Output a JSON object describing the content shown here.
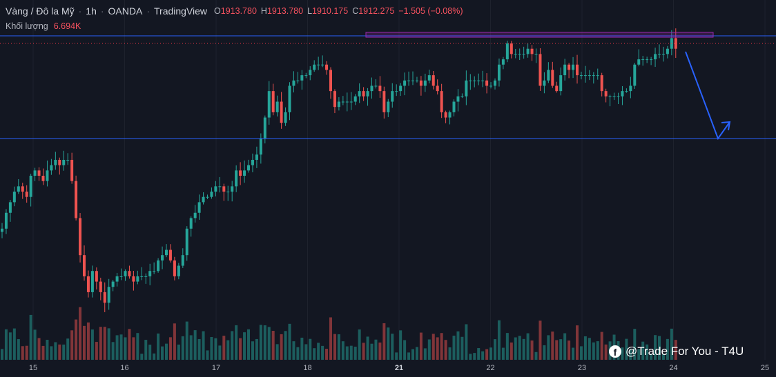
{
  "header": {
    "symbol": "Vàng / Đô la Mỹ",
    "interval": "1h",
    "broker": "OANDA",
    "platform": "TradingView",
    "o_label": "O",
    "o_value": "1913.780",
    "h_label": "H",
    "h_value": "1913.780",
    "l_label": "L",
    "l_value": "1910.175",
    "c_label": "C",
    "c_value": "1912.275",
    "change": "−1.505 (−0.08%)"
  },
  "volume": {
    "label": "Khối lượng",
    "value": "6.694K"
  },
  "watermark": {
    "text": "@Trade For You - T4U"
  },
  "colors": {
    "background": "#131722",
    "up": "#26a69a",
    "down": "#ef5350",
    "hline": "#2962ff",
    "zone": "#9c27b0",
    "arrow": "#2962ff",
    "price_line": "#f23645"
  },
  "chart_data": {
    "type": "candlestick",
    "symbol": "XAUUSD",
    "timeframe": "1h",
    "x_ticks": [
      {
        "label": "15",
        "bold": false
      },
      {
        "label": "16",
        "bold": false
      },
      {
        "label": "17",
        "bold": false
      },
      {
        "label": "18",
        "bold": false
      },
      {
        "label": "21",
        "bold": true
      },
      {
        "label": "22",
        "bold": false
      },
      {
        "label": "23",
        "bold": false
      },
      {
        "label": "24",
        "bold": false
      },
      {
        "label": "25",
        "bold": false
      }
    ],
    "resistance_level": 1914.0,
    "support_level": 1901.0,
    "last_close": 1912.275,
    "ylim": [
      1860,
      1916
    ],
    "closes": [
      1878,
      1881,
      1883,
      1885,
      1886,
      1885,
      1884,
      1888,
      1889,
      1888,
      1887,
      1889,
      1890,
      1891,
      1890,
      1891,
      1891,
      1887,
      1880,
      1873,
      1869,
      1866,
      1870,
      1868,
      1866,
      1864,
      1867,
      1868,
      1869,
      1869,
      1870,
      1869,
      1868,
      1869,
      1869,
      1869,
      1870,
      1870,
      1872,
      1873,
      1874,
      1872,
      1869,
      1871,
      1873,
      1878,
      1880,
      1881,
      1883,
      1884,
      1884,
      1885,
      1886,
      1886,
      1885,
      1885,
      1886,
      1889,
      1888,
      1889,
      1890,
      1891,
      1892,
      1895,
      1899,
      1904,
      1900,
      1902,
      1898,
      1900,
      1905,
      1906,
      1906,
      1907,
      1907,
      1908,
      1909,
      1909,
      1909,
      1908,
      1904,
      1901,
      1902,
      1902,
      1902,
      1902,
      1903,
      1904,
      1903,
      1904,
      1905,
      1905,
      1904,
      1900,
      1902,
      1904,
      1904,
      1905,
      1906,
      1906,
      1906,
      1906,
      1905,
      1906,
      1907,
      1905,
      1904,
      1900,
      1899,
      1900,
      1902,
      1903,
      1903,
      1906,
      1906,
      1906,
      1906,
      1906,
      1905,
      1905,
      1906,
      1909,
      1910,
      1913,
      1911,
      1911,
      1911,
      1911,
      1912,
      1911,
      1911,
      1905,
      1906,
      1908,
      1905,
      1904,
      1907,
      1909,
      1908,
      1909,
      1907,
      1907,
      1907,
      1907,
      1907,
      1907,
      1904,
      1903,
      1903,
      1903,
      1903,
      1904,
      1904,
      1905,
      1909,
      1910,
      1910,
      1910,
      1910,
      1911,
      1911,
      1911,
      1912,
      1914,
      1912
    ]
  }
}
